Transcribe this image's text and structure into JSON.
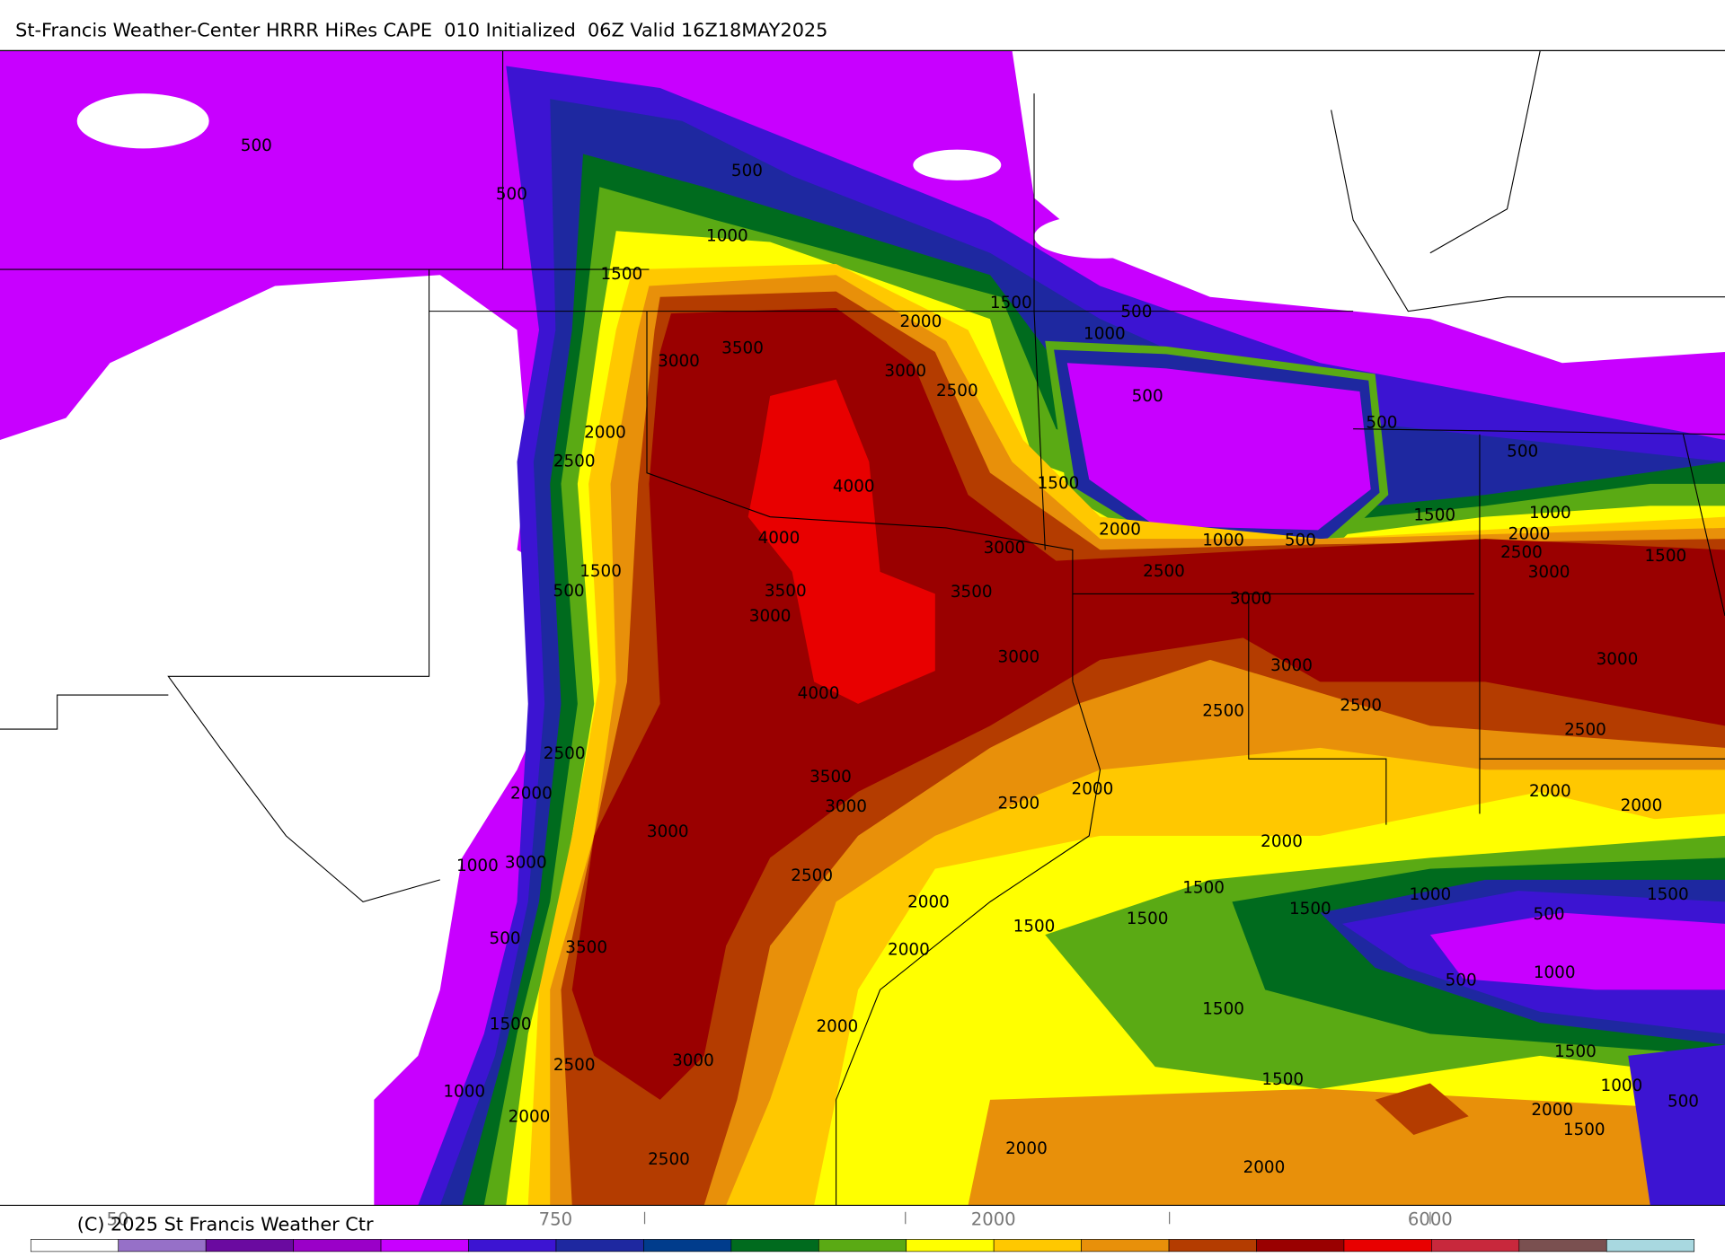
{
  "header": {
    "title": "St-Francis Weather-Center HRRR HiRes CAPE  010 Initialized  06Z Valid 16Z18MAY2025"
  },
  "map": {
    "contour_labels": [
      "500",
      "500",
      "500",
      "1000",
      "1500",
      "1500",
      "2000",
      "500",
      "1000",
      "3000",
      "3500",
      "3000",
      "2500",
      "500",
      "500",
      "2000",
      "2500",
      "1500",
      "4000",
      "4000",
      "2000",
      "1000",
      "500",
      "500",
      "1500",
      "1000",
      "2000",
      "2500",
      "3000",
      "1500",
      "3000",
      "2500",
      "1500",
      "500",
      "3500",
      "3000",
      "3500",
      "3000",
      "3000",
      "3000",
      "3000",
      "4000",
      "2500",
      "2500",
      "2500",
      "2500",
      "2000",
      "3500",
      "3000",
      "2500",
      "2000",
      "2000",
      "2000",
      "3000",
      "2000",
      "3000",
      "1000",
      "2500",
      "1500",
      "1500",
      "1000",
      "1500",
      "500",
      "2000",
      "1500",
      "1500",
      "500",
      "3500",
      "2000",
      "500",
      "1000",
      "1500",
      "1500",
      "2000",
      "3000",
      "2500",
      "1500",
      "1500",
      "1000",
      "1000",
      "500",
      "2000",
      "2000",
      "1500",
      "2000",
      "2500",
      "2000"
    ]
  },
  "footer": {
    "copyright": "(C) 2025 St Francis Weather Ctr",
    "colorbar": {
      "colors": [
        "#ffffff",
        "#9670c8",
        "#6a0aa0",
        "#9a00c8",
        "#c800ff",
        "#3c14d2",
        "#1e28a0",
        "#003c8c",
        "#006b1e",
        "#5aaa14",
        "#ffff00",
        "#ffc800",
        "#e8900a",
        "#b43c00",
        "#9a0000",
        "#e80000",
        "#c8283c",
        "#7a5050",
        "#8c9ba2",
        "#a8d8e0"
      ],
      "labels": [
        "50",
        "750",
        "2000",
        "6000"
      ]
    }
  }
}
